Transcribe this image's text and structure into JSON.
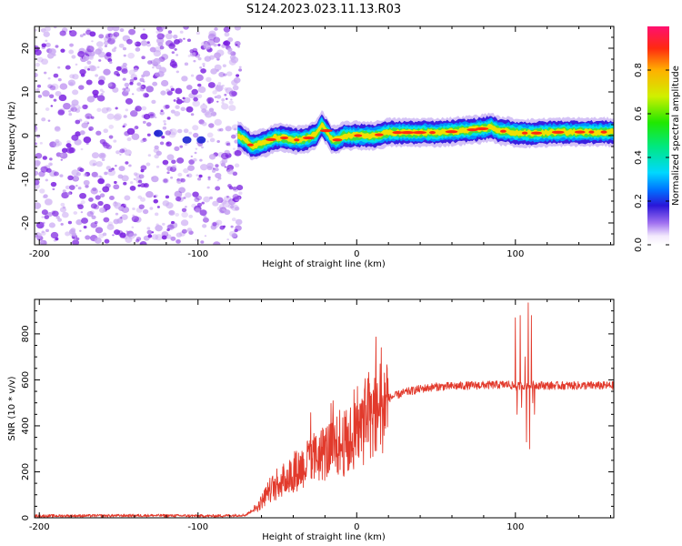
{
  "title": "S124.2023.023.11.13.R03",
  "colors": {
    "trace": "#e23a2c",
    "speckle_dark": "#7a1fe0",
    "speckle_light": "#c8a6f2"
  },
  "chart_data": [
    {
      "type": "heatmap",
      "name": "spectrogram",
      "xlabel": "Height of straight line (km)",
      "ylabel": "Frequency (Hz)",
      "xlim": [
        -203,
        162
      ],
      "ylim": [
        -25,
        25
      ],
      "xticks": [
        -200,
        -100,
        0,
        100
      ],
      "xtick_labels": [
        "-200",
        "-100",
        "0",
        "100"
      ],
      "yticks": [
        -20,
        -10,
        0,
        10,
        20
      ],
      "ytick_labels": [
        "-20",
        "-10",
        "0",
        "10",
        "20"
      ],
      "grid": false,
      "noise_region_x": [
        -203,
        -73
      ],
      "ridge": [
        [
          -75,
          0
        ],
        [
          -70,
          -1
        ],
        [
          -66,
          -2.5
        ],
        [
          -62,
          -2
        ],
        [
          -57,
          -1.5
        ],
        [
          -52,
          -0.5
        ],
        [
          -46,
          -0.5
        ],
        [
          -40,
          -1
        ],
        [
          -35,
          -1
        ],
        [
          -30,
          -0.5
        ],
        [
          -25,
          0.5
        ],
        [
          -22,
          2.5
        ],
        [
          -19,
          1
        ],
        [
          -16,
          -0.8
        ],
        [
          -12,
          -1
        ],
        [
          -8,
          0
        ],
        [
          -3,
          0
        ],
        [
          0,
          0
        ],
        [
          5,
          0
        ],
        [
          12,
          0
        ],
        [
          20,
          0.7
        ],
        [
          30,
          0.7
        ],
        [
          40,
          0.7
        ],
        [
          50,
          0.7
        ],
        [
          60,
          0.9
        ],
        [
          70,
          1.2
        ],
        [
          80,
          1.6
        ],
        [
          85,
          2
        ],
        [
          90,
          1
        ],
        [
          95,
          1
        ],
        [
          100,
          0.6
        ],
        [
          105,
          0.6
        ],
        [
          110,
          0.5
        ],
        [
          120,
          0.7
        ],
        [
          130,
          0.8
        ],
        [
          140,
          0.8
        ],
        [
          150,
          0.8
        ],
        [
          162,
          0.8
        ]
      ],
      "colorbar": {
        "label": "Normalized spectral amplitude",
        "range": [
          0.0,
          1.0
        ],
        "ticks": [
          0.0,
          0.2,
          0.4,
          0.6,
          0.8
        ],
        "tick_labels": [
          "0.0",
          "0.2",
          "0.4",
          "0.6",
          "0.8"
        ]
      }
    },
    {
      "type": "line",
      "name": "snr",
      "xlabel": "Height of straight line (km)",
      "ylabel": "SNR (10 * v/v)",
      "xlim": [
        -203,
        162
      ],
      "ylim": [
        0,
        950
      ],
      "xticks": [
        -200,
        -100,
        0,
        100
      ],
      "xtick_labels": [
        "-200",
        "-100",
        "0",
        "100"
      ],
      "yticks": [
        0,
        200,
        400,
        600,
        800
      ],
      "ytick_labels": [
        "0",
        "200",
        "400",
        "600",
        "800"
      ],
      "grid": false,
      "envelope": [
        [
          -203,
          8
        ],
        [
          -130,
          10
        ],
        [
          -90,
          8
        ],
        [
          -70,
          12
        ],
        [
          -62,
          50
        ],
        [
          -55,
          120
        ],
        [
          -45,
          170
        ],
        [
          -35,
          220
        ],
        [
          -25,
          270
        ],
        [
          -15,
          300
        ],
        [
          -8,
          320
        ],
        [
          0,
          360
        ],
        [
          5,
          420
        ],
        [
          10,
          470
        ],
        [
          15,
          500
        ],
        [
          20,
          520
        ],
        [
          30,
          545
        ],
        [
          40,
          560
        ],
        [
          50,
          570
        ],
        [
          60,
          572
        ],
        [
          70,
          575
        ],
        [
          80,
          577
        ],
        [
          90,
          578
        ],
        [
          96,
          580
        ],
        [
          100,
          570
        ],
        [
          104,
          575
        ],
        [
          108,
          575
        ],
        [
          112,
          578
        ],
        [
          120,
          575
        ],
        [
          140,
          575
        ],
        [
          162,
          575
        ]
      ],
      "spikes": [
        [
          100,
          870
        ],
        [
          101,
          450
        ],
        [
          103,
          880
        ],
        [
          104,
          480
        ],
        [
          106,
          700
        ],
        [
          107,
          330
        ],
        [
          108,
          935
        ],
        [
          109,
          300
        ],
        [
          110,
          880
        ],
        [
          111,
          500
        ],
        [
          112,
          450
        ]
      ]
    }
  ]
}
